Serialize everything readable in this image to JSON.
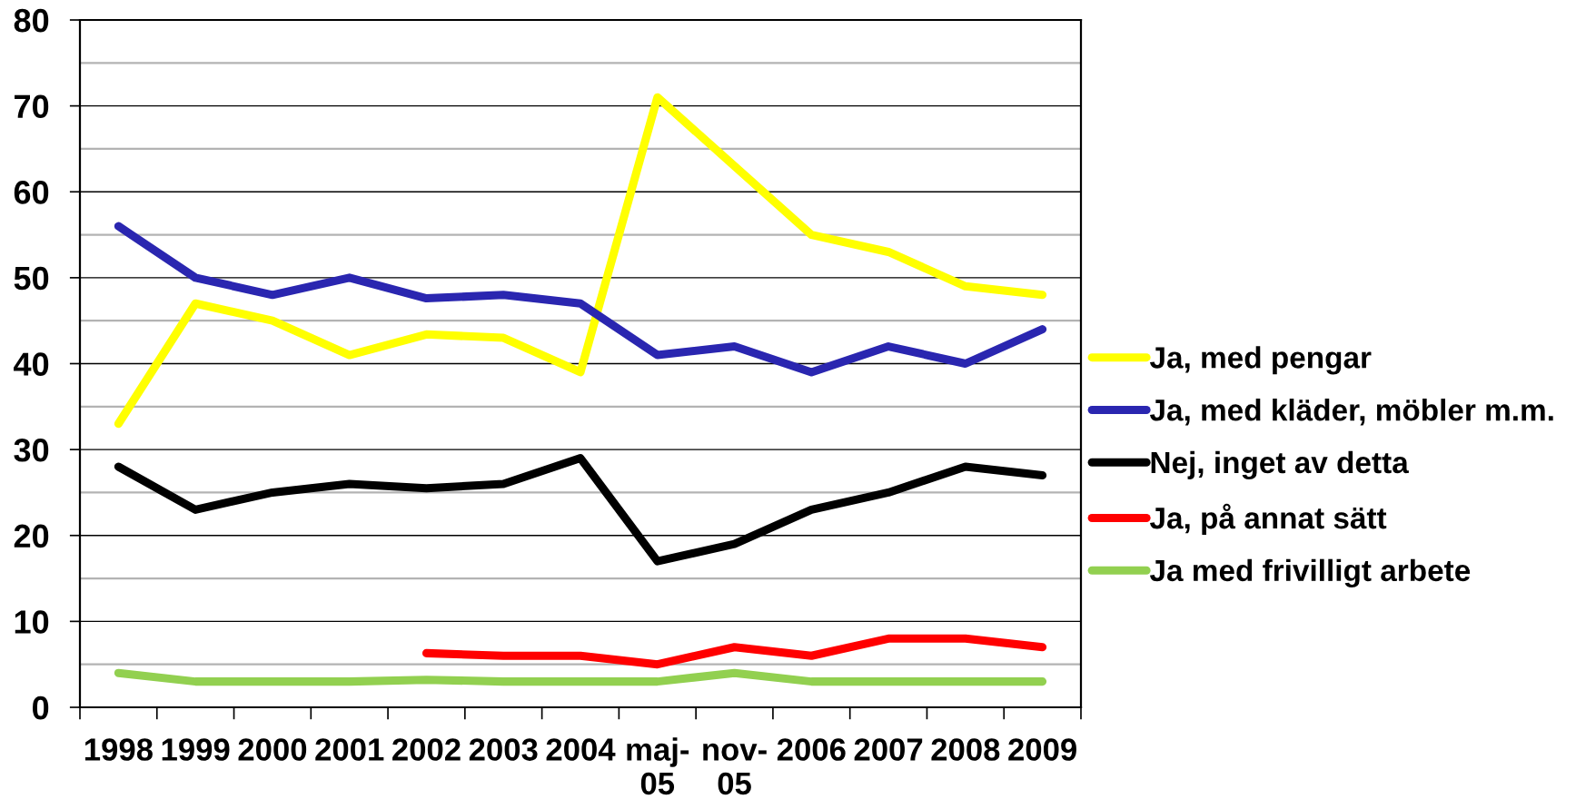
{
  "chart_data": {
    "type": "line",
    "categories": [
      "1998",
      "1999",
      "2000",
      "2001",
      "2002",
      "2003",
      "2004",
      "maj-\n05",
      "nov-\n05",
      "2006",
      "2007",
      "2008",
      "2009"
    ],
    "series": [
      {
        "name": "Ja, med pengar",
        "color": "#ffff00",
        "values": [
          33,
          47,
          45,
          41,
          43.4,
          43,
          39,
          71,
          63,
          55,
          53,
          49,
          48
        ]
      },
      {
        "name": "Ja, med kläder, möbler m.m.",
        "color": "#2a26b0",
        "values": [
          56,
          50,
          48,
          50,
          47.6,
          48,
          47,
          41,
          42,
          39,
          42,
          40,
          44
        ]
      },
      {
        "name": "Nej, inget av detta",
        "color": "#000000",
        "values": [
          28,
          23,
          25,
          26,
          25.5,
          26,
          29,
          17,
          19,
          23,
          25,
          28,
          27
        ]
      },
      {
        "name": "Ja, på annat sätt",
        "color": "#ff0000",
        "values": [
          null,
          null,
          null,
          null,
          6.3,
          6,
          6,
          5,
          7,
          6,
          8,
          8,
          7
        ]
      },
      {
        "name": "Ja med frivilligt arbete",
        "color": "#92d050",
        "values": [
          4,
          3,
          3,
          3,
          3.2,
          3,
          3,
          3,
          4,
          3,
          3,
          3,
          3
        ]
      }
    ],
    "ylim": [
      0,
      80
    ],
    "yticks": [
      0,
      {
        "value": 5,
        "label": null
      },
      10,
      {
        "value": 15,
        "label": null
      },
      20,
      {
        "value": 25,
        "label": null
      },
      30,
      {
        "value": 35,
        "label": null
      },
      40,
      {
        "value": 45,
        "label": null
      },
      50,
      {
        "value": 55,
        "label": null
      },
      60,
      {
        "value": 65,
        "label": null
      },
      70,
      {
        "value": 75,
        "label": null
      },
      80
    ],
    "grid": "y",
    "legend": "right",
    "line_style": "solid"
  }
}
